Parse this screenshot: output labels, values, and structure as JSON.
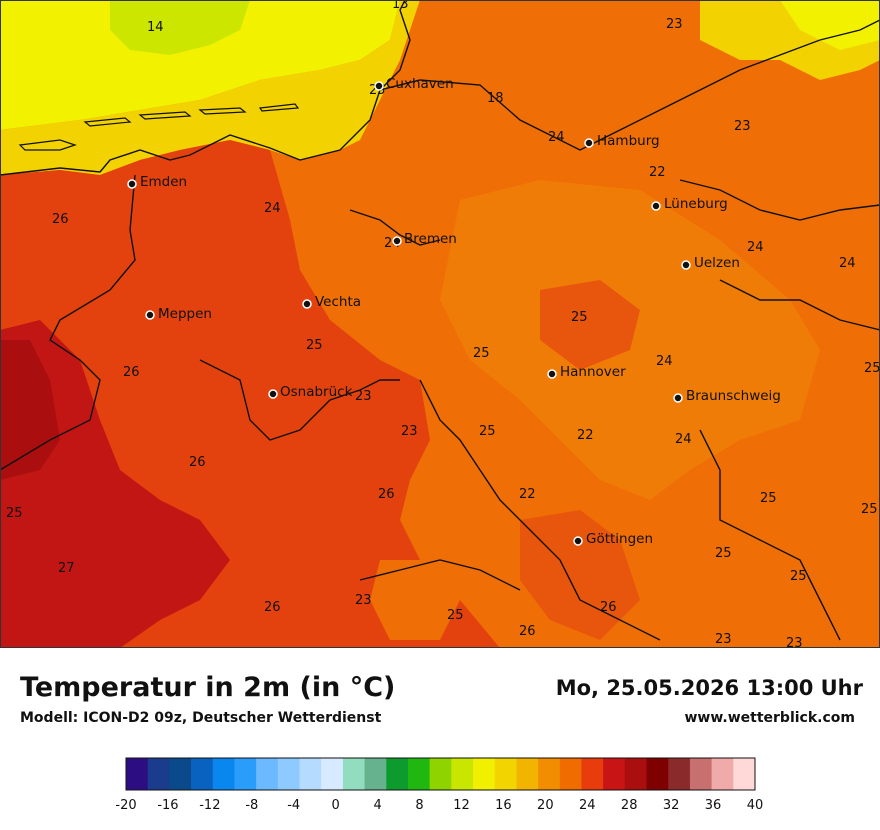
{
  "header": {
    "title": "Temperatur in 2m (in °C)",
    "subtitle": "Modell: ICON-D2 09z, Deutscher Wetterdienst",
    "datetime": "Mo, 25.05.2026 13:00 Uhr",
    "website": "www.wetterblick.com"
  },
  "cities": {
    "cuxhaven": "Cuxhaven",
    "hamburg": "Hamburg",
    "emden": "Emden",
    "lueneburg": "Lüneburg",
    "bremen": "Bremen",
    "uelzen": "Uelzen",
    "vechta": "Vechta",
    "meppen": "Meppen",
    "hannover": "Hannover",
    "osnabrueck": "Osnabrück",
    "braunschweig": "Braunschweig",
    "goettingen": "Göttingen"
  },
  "values": {
    "v14": "14",
    "v13": "13",
    "v23": "23",
    "v25": "25",
    "v18": "18",
    "v24": "24",
    "v22": "22",
    "v26": "26",
    "v27": "27"
  },
  "legend": {
    "ticks": [
      "-20",
      "-16",
      "-12",
      "-8",
      "-4",
      "0",
      "4",
      "8",
      "12",
      "16",
      "20",
      "24",
      "28",
      "32",
      "36",
      "40"
    ],
    "colors": [
      "#2d0e82",
      "#1b3c8c",
      "#0b4a8a",
      "#0a62c0",
      "#0a86ef",
      "#2a9dfa",
      "#6cb9ff",
      "#8ec9ff",
      "#b5dbff",
      "#d7eaff",
      "#92dcc0",
      "#66b28f",
      "#0e9b2e",
      "#20b810",
      "#8fd400",
      "#c8e600",
      "#f0f000",
      "#f2d400",
      "#f2b400",
      "#f28c00",
      "#f06c00",
      "#e83c0c",
      "#c81414",
      "#aa0e0e",
      "#7e0000",
      "#8a2a2a",
      "#c87070",
      "#f0aaaa",
      "#ffd8d8"
    ]
  }
}
